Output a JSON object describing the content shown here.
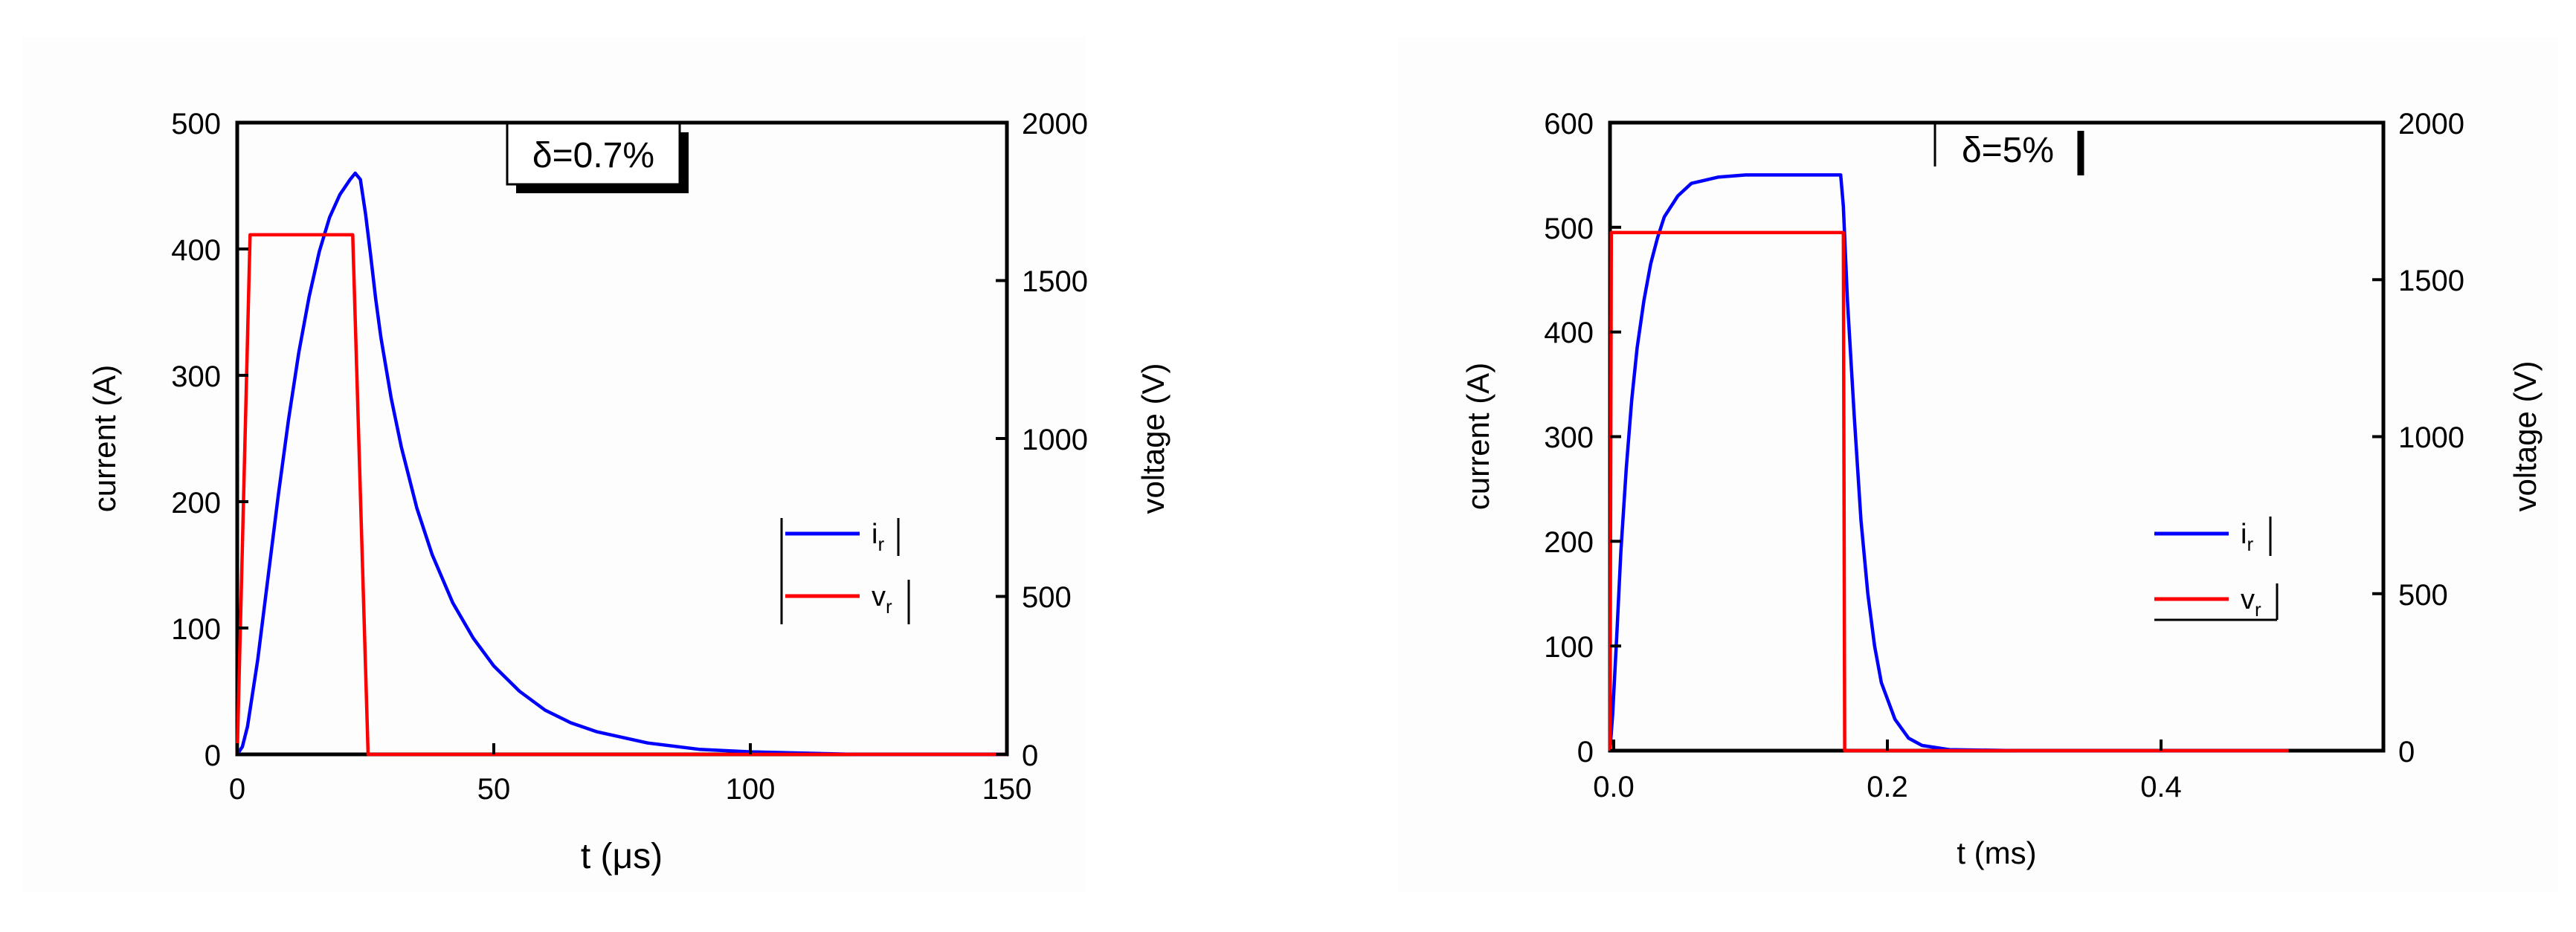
{
  "chart_data": [
    {
      "type": "line",
      "annotation": "δ=0.7%",
      "xlabel": "t (μs)",
      "ylabel": "current (A)",
      "y2label": "voltage (V)",
      "xlim": [
        0,
        150
      ],
      "ylim": [
        0,
        500
      ],
      "y2lim": [
        0,
        2000
      ],
      "xticks": [
        "0",
        "50",
        "100",
        "150"
      ],
      "yticks": [
        "0",
        "100",
        "200",
        "300",
        "400",
        "500"
      ],
      "y2ticks": [
        "0",
        "500",
        "1000",
        "1500",
        "2000"
      ],
      "legend": [
        {
          "label": "i",
          "sub": "r",
          "color": "#0000ff"
        },
        {
          "label": "v",
          "sub": "r",
          "color": "#ff0000"
        }
      ],
      "series": [
        {
          "name": "i_r",
          "axis": "left",
          "color": "#0000ff",
          "x": [
            0,
            1,
            2,
            4,
            6,
            8,
            10,
            12,
            14,
            16,
            18,
            20,
            22,
            23,
            24,
            25,
            26,
            27,
            28,
            30,
            32,
            35,
            38,
            42,
            46,
            50,
            55,
            60,
            65,
            70,
            80,
            90,
            100,
            110,
            120,
            150
          ],
          "y": [
            0,
            6,
            22,
            75,
            140,
            205,
            265,
            318,
            362,
            398,
            425,
            443,
            455,
            460,
            455,
            428,
            395,
            360,
            330,
            282,
            243,
            195,
            158,
            120,
            92,
            70,
            50,
            35,
            25,
            18,
            9,
            4,
            2,
            1,
            0,
            0
          ]
        },
        {
          "name": "v_r",
          "axis": "right",
          "color": "#ff0000",
          "x": [
            0,
            2.5,
            22.5,
            25.5,
            150
          ],
          "y": [
            0,
            1645,
            1645,
            0,
            0
          ]
        }
      ]
    },
    {
      "type": "line",
      "annotation": "δ=5%",
      "xlabel": "t (ms)",
      "ylabel": "current (A)",
      "y2label": "voltage (V)",
      "xlim": [
        0,
        0.57
      ],
      "ylim": [
        0,
        600
      ],
      "y2lim": [
        0,
        2000
      ],
      "xticks": [
        "0.0",
        "0.2",
        "0.4"
      ],
      "yticks": [
        "0",
        "100",
        "200",
        "300",
        "400",
        "500",
        "600"
      ],
      "y2ticks": [
        "0",
        "500",
        "1000",
        "1500",
        "2000"
      ],
      "legend": [
        {
          "label": "i",
          "sub": "r",
          "color": "#0000ff"
        },
        {
          "label": "v",
          "sub": "r",
          "color": "#ff0000"
        }
      ],
      "series": [
        {
          "name": "i_r",
          "axis": "left",
          "color": "#0000ff",
          "x": [
            0,
            0.002,
            0.005,
            0.008,
            0.012,
            0.016,
            0.02,
            0.025,
            0.03,
            0.035,
            0.04,
            0.05,
            0.06,
            0.08,
            0.1,
            0.15,
            0.17,
            0.172,
            0.175,
            0.18,
            0.185,
            0.19,
            0.195,
            0.2,
            0.21,
            0.22,
            0.23,
            0.25,
            0.3,
            0.4,
            0.5
          ],
          "y": [
            0,
            35,
            110,
            190,
            270,
            335,
            385,
            430,
            465,
            490,
            510,
            530,
            542,
            548,
            550,
            550,
            550,
            520,
            430,
            320,
            220,
            150,
            100,
            65,
            30,
            12,
            5,
            1,
            0,
            0,
            0
          ]
        },
        {
          "name": "v_r",
          "axis": "right",
          "color": "#ff0000",
          "x": [
            0,
            0.001,
            0.172,
            0.173,
            0.5
          ],
          "y": [
            0,
            1650,
            1650,
            0,
            0
          ]
        }
      ]
    }
  ]
}
